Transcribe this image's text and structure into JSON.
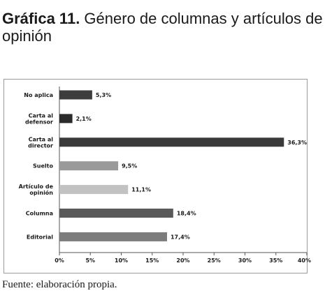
{
  "header": {
    "title_lead": "Gráfica 11.",
    "title_rest": " Género de columnas y artículos de opinión"
  },
  "footer": {
    "source": "Fuente: elaboración propia."
  },
  "chart_data": {
    "type": "bar",
    "orientation": "horizontal",
    "categories": [
      [
        "No aplica"
      ],
      [
        "Carta al",
        "defensor"
      ],
      [
        "Carta al",
        "director"
      ],
      [
        "Suelto"
      ],
      [
        "Artículo de",
        "opinión"
      ],
      [
        "Columna"
      ],
      [
        "Editorial"
      ]
    ],
    "values": [
      5.3,
      2.1,
      36.3,
      9.5,
      11.1,
      18.4,
      17.4
    ],
    "value_labels": [
      "5,3%",
      "2,1%",
      "36,3%",
      "9,5%",
      "11,1%",
      "18,4%",
      "17,4%"
    ],
    "bar_colors": [
      "#3d3d3d",
      "#2b2b2b",
      "#3a3a3a",
      "#9a9a9a",
      "#c2c2c2",
      "#5a5a5a",
      "#7c7c7c"
    ],
    "xlim": [
      0,
      40
    ],
    "xticks": [
      0,
      5,
      10,
      15,
      20,
      25,
      30,
      35,
      40
    ],
    "xtick_labels": [
      "0%",
      "5%",
      "10%",
      "15%",
      "20%",
      "25%",
      "30%",
      "35%",
      "40%"
    ],
    "grid": false,
    "legend": "none"
  }
}
